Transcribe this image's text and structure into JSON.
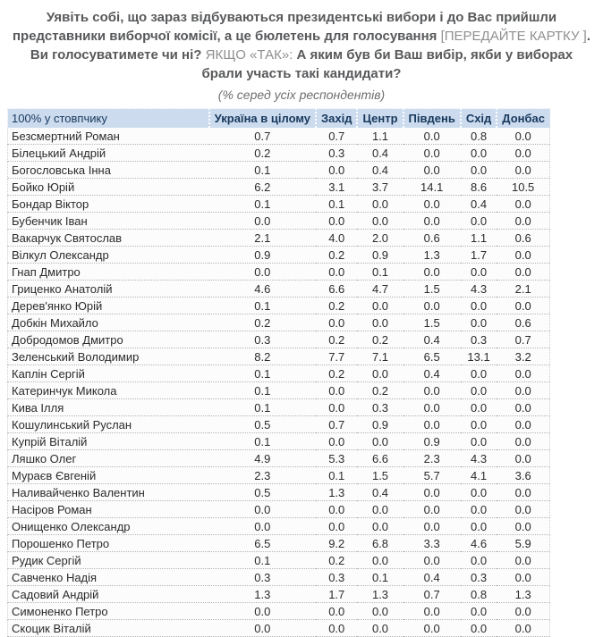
{
  "question": {
    "part1_bold": "Уявіть собі, що зараз відбуваються президентські вибори і до Вас прийшли представники виборчої комісії, а це бюлетень для голосування ",
    "bracket_note": "[ПЕРЕДАЙТЕ КАРТКУ ]",
    "part2_bold": ". Ви голосуватимете чи ні? ",
    "condition_note": "ЯКЩО «ТАК»:",
    "part3_bold": " А яким був би Ваш вибір, якби у виборах брали участь такі кандидати?",
    "subtitle": "(% серед усіх респондентів)"
  },
  "chart_data": {
    "type": "table",
    "title": "Уявіть собі, що зараз відбуваються президентські вибори і до Вас прийшли представники виборчої комісії, а це бюлетень для голосування [ПЕРЕДАЙТЕ КАРТКУ ]. Ви голосуватимете чи ні? ЯКЩО «ТАК»: А яким був би Ваш вибір, якби у виборах брали участь такі кандидати?",
    "subtitle": "(% серед усіх респондентів)",
    "corner_label": "100% у стовпчику",
    "units": "percent of all respondents, 100% per column",
    "columns": [
      "Україна в цілому",
      "Захід",
      "Центр",
      "Південь",
      "Схід",
      "Донбас"
    ],
    "rows": [
      {
        "name": "Безсмертний Роман",
        "values": [
          0.7,
          0.7,
          1.1,
          0.0,
          0.8,
          0.0
        ]
      },
      {
        "name": "Білецький Андрій",
        "values": [
          0.2,
          0.3,
          0.4,
          0.0,
          0.0,
          0.0
        ]
      },
      {
        "name": "Богословська Інна",
        "values": [
          0.1,
          0.0,
          0.4,
          0.0,
          0.0,
          0.0
        ]
      },
      {
        "name": "Бойко Юрій",
        "values": [
          6.2,
          3.1,
          3.7,
          14.1,
          8.6,
          10.5
        ]
      },
      {
        "name": "Бондар Віктор",
        "values": [
          0.1,
          0.1,
          0.0,
          0.0,
          0.4,
          0.0
        ]
      },
      {
        "name": "Бубенчик Іван",
        "values": [
          0.0,
          0.0,
          0.0,
          0.0,
          0.0,
          0.0
        ]
      },
      {
        "name": "Вакарчук Святослав",
        "values": [
          2.1,
          4.0,
          2.0,
          0.6,
          1.1,
          0.6
        ]
      },
      {
        "name": "Вілкул Олександр",
        "values": [
          0.9,
          0.2,
          0.9,
          1.3,
          1.7,
          0.0
        ]
      },
      {
        "name": "Гнап Дмитро",
        "values": [
          0.0,
          0.0,
          0.1,
          0.0,
          0.0,
          0.0
        ]
      },
      {
        "name": "Гриценко Анатолій",
        "values": [
          4.6,
          6.6,
          4.7,
          1.5,
          4.3,
          2.1
        ]
      },
      {
        "name": "Дерев'янко Юрій",
        "values": [
          0.1,
          0.2,
          0.0,
          0.0,
          0.0,
          0.0
        ]
      },
      {
        "name": "Добкін Михайло",
        "values": [
          0.2,
          0.0,
          0.0,
          1.5,
          0.0,
          0.6
        ]
      },
      {
        "name": "Добродомов Дмитро",
        "values": [
          0.3,
          0.2,
          0.2,
          0.4,
          0.3,
          0.7
        ]
      },
      {
        "name": "Зеленський Володимир",
        "values": [
          8.2,
          7.7,
          7.1,
          6.5,
          13.1,
          3.2
        ]
      },
      {
        "name": "Каплін Сергій",
        "values": [
          0.1,
          0.2,
          0.0,
          0.4,
          0.0,
          0.0
        ]
      },
      {
        "name": "Катеринчук Микола",
        "values": [
          0.1,
          0.0,
          0.2,
          0.0,
          0.0,
          0.0
        ]
      },
      {
        "name": "Кива Ілля",
        "values": [
          0.1,
          0.0,
          0.3,
          0.0,
          0.0,
          0.0
        ]
      },
      {
        "name": "Кошулинський Руслан",
        "values": [
          0.5,
          0.7,
          0.9,
          0.0,
          0.0,
          0.0
        ]
      },
      {
        "name": "Купрій Віталій",
        "values": [
          0.1,
          0.0,
          0.0,
          0.9,
          0.0,
          0.0
        ]
      },
      {
        "name": "Ляшко Олег",
        "values": [
          4.9,
          5.3,
          6.6,
          2.3,
          4.3,
          0.0
        ]
      },
      {
        "name": "Мураєв Євгеній",
        "values": [
          2.3,
          0.1,
          1.5,
          5.7,
          4.1,
          3.6
        ]
      },
      {
        "name": "Наливайченко Валентин",
        "values": [
          0.5,
          1.3,
          0.4,
          0.0,
          0.0,
          0.0
        ]
      },
      {
        "name": "Насіров Роман",
        "values": [
          0.0,
          0.0,
          0.0,
          0.0,
          0.0,
          0.0
        ]
      },
      {
        "name": "Онищенко Олександр",
        "values": [
          0.0,
          0.0,
          0.0,
          0.0,
          0.0,
          0.0
        ]
      },
      {
        "name": "Порошенко Петро",
        "values": [
          6.5,
          9.2,
          6.8,
          3.3,
          4.6,
          5.9
        ]
      },
      {
        "name": "Рудик Сергій",
        "values": [
          0.1,
          0.2,
          0.0,
          0.0,
          0.0,
          0.0
        ]
      },
      {
        "name": "Савченко Надія",
        "values": [
          0.3,
          0.3,
          0.1,
          0.4,
          0.3,
          0.0
        ]
      },
      {
        "name": "Садовий Андрій",
        "values": [
          1.3,
          1.7,
          1.3,
          0.7,
          0.8,
          1.3
        ]
      },
      {
        "name": "Симоненко Петро",
        "values": [
          0.0,
          0.0,
          0.0,
          0.0,
          0.0,
          0.0
        ]
      },
      {
        "name": "Скоцик Віталій",
        "values": [
          0.0,
          0.0,
          0.0,
          0.0,
          0.0,
          0.0
        ]
      }
    ]
  },
  "colors": {
    "header_bg": "#ccdcee",
    "header_text": "#17375d",
    "title_text": "#58595b",
    "note_text": "#8f8f8f",
    "body_text": "#2b2b2b"
  }
}
